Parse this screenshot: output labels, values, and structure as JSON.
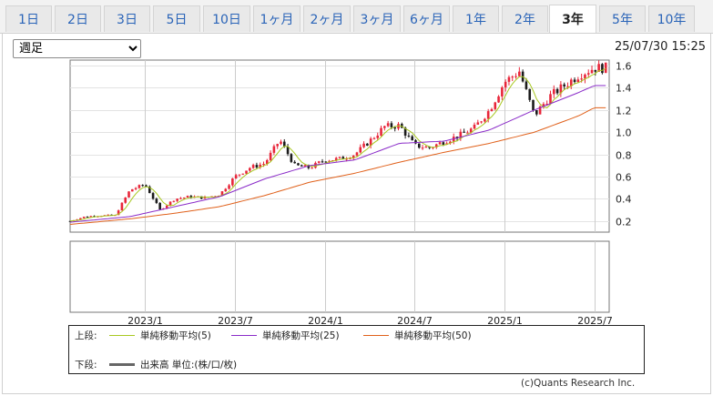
{
  "tabs": [
    {
      "label": "1日"
    },
    {
      "label": "2日"
    },
    {
      "label": "3日"
    },
    {
      "label": "5日"
    },
    {
      "label": "10日"
    },
    {
      "label": "1ヶ月"
    },
    {
      "label": "2ヶ月"
    },
    {
      "label": "3ヶ月"
    },
    {
      "label": "6ヶ月"
    },
    {
      "label": "1年"
    },
    {
      "label": "2年"
    },
    {
      "label": "3年"
    },
    {
      "label": "5年"
    },
    {
      "label": "10年"
    }
  ],
  "active_tab": "3年",
  "period_select": {
    "value": "週足"
  },
  "timestamp": "25/07/30 15:25",
  "legend": {
    "upper_label": "上段:",
    "lower_label": "下段:",
    "ma5": "単純移動平均(5)",
    "ma25": "単純移動平均(25)",
    "ma50": "単純移動平均(50)",
    "volume": "出来高 単位:(株/口/枚)"
  },
  "copyright": "(c)Quants Research Inc.",
  "colors": {
    "up": "#e8263a",
    "down": "#1b1b1b",
    "ma5": "#a8c820",
    "ma25": "#8a2bc8",
    "ma50": "#e0601a",
    "volume": "#666666"
  },
  "chart_data": {
    "type": "candlestick",
    "x_ticks": [
      "2023/1",
      "2023/7",
      "2024/1",
      "2024/7",
      "2025/1",
      "2025/7"
    ],
    "y_ticks": [
      "0.2",
      "0.4",
      "0.6",
      "0.8",
      "1.0",
      "1.2",
      "1.4",
      "1.6"
    ],
    "ylim": [
      0.1,
      1.65
    ],
    "x_range": [
      "2022-08",
      "2025-08"
    ],
    "grid": true,
    "close_anchors": [
      {
        "date": "2022-08",
        "close": 0.2
      },
      {
        "date": "2022-09",
        "close": 0.24
      },
      {
        "date": "2022-10",
        "close": 0.25
      },
      {
        "date": "2022-11",
        "close": 0.25
      },
      {
        "date": "2022-12",
        "close": 0.48
      },
      {
        "date": "2023-01",
        "close": 0.53
      },
      {
        "date": "2023-02",
        "close": 0.3
      },
      {
        "date": "2023-03",
        "close": 0.4
      },
      {
        "date": "2023-04",
        "close": 0.42
      },
      {
        "date": "2023-05",
        "close": 0.41
      },
      {
        "date": "2023-06",
        "close": 0.44
      },
      {
        "date": "2023-07",
        "close": 0.6
      },
      {
        "date": "2023-08",
        "close": 0.68
      },
      {
        "date": "2023-09",
        "close": 0.72
      },
      {
        "date": "2023-10",
        "close": 0.93
      },
      {
        "date": "2023-11",
        "close": 0.7
      },
      {
        "date": "2023-12",
        "close": 0.68
      },
      {
        "date": "2024-01",
        "close": 0.75
      },
      {
        "date": "2024-02",
        "close": 0.76
      },
      {
        "date": "2024-03",
        "close": 0.8
      },
      {
        "date": "2024-04",
        "close": 0.92
      },
      {
        "date": "2024-05",
        "close": 1.05
      },
      {
        "date": "2024-06",
        "close": 1.06
      },
      {
        "date": "2024-07",
        "close": 0.88
      },
      {
        "date": "2024-08",
        "close": 0.86
      },
      {
        "date": "2024-09",
        "close": 0.92
      },
      {
        "date": "2024-10",
        "close": 0.97
      },
      {
        "date": "2024-11",
        "close": 1.04
      },
      {
        "date": "2024-12",
        "close": 1.2
      },
      {
        "date": "2025-01",
        "close": 1.45
      },
      {
        "date": "2025-02",
        "close": 1.55
      },
      {
        "date": "2025-03",
        "close": 1.15
      },
      {
        "date": "2025-04",
        "close": 1.32
      },
      {
        "date": "2025-05",
        "close": 1.42
      },
      {
        "date": "2025-06",
        "close": 1.52
      },
      {
        "date": "2025-07",
        "close": 1.58
      }
    ],
    "ma25_anchors": [
      {
        "date": "2022-08",
        "value": 0.19
      },
      {
        "date": "2022-12",
        "value": 0.24
      },
      {
        "date": "2023-03",
        "value": 0.33
      },
      {
        "date": "2023-06",
        "value": 0.42
      },
      {
        "date": "2023-09",
        "value": 0.58
      },
      {
        "date": "2023-12",
        "value": 0.7
      },
      {
        "date": "2024-03",
        "value": 0.75
      },
      {
        "date": "2024-06",
        "value": 0.9
      },
      {
        "date": "2024-09",
        "value": 0.92
      },
      {
        "date": "2024-12",
        "value": 1.02
      },
      {
        "date": "2025-03",
        "value": 1.2
      },
      {
        "date": "2025-06",
        "value": 1.36
      },
      {
        "date": "2025-07",
        "value": 1.42
      }
    ],
    "ma50_anchors": [
      {
        "date": "2022-08",
        "value": 0.17
      },
      {
        "date": "2022-12",
        "value": 0.22
      },
      {
        "date": "2023-03",
        "value": 0.27
      },
      {
        "date": "2023-06",
        "value": 0.33
      },
      {
        "date": "2023-09",
        "value": 0.43
      },
      {
        "date": "2023-12",
        "value": 0.55
      },
      {
        "date": "2024-03",
        "value": 0.63
      },
      {
        "date": "2024-06",
        "value": 0.73
      },
      {
        "date": "2024-09",
        "value": 0.82
      },
      {
        "date": "2024-12",
        "value": 0.9
      },
      {
        "date": "2025-03",
        "value": 1.0
      },
      {
        "date": "2025-06",
        "value": 1.15
      },
      {
        "date": "2025-07",
        "value": 1.22
      }
    ]
  }
}
